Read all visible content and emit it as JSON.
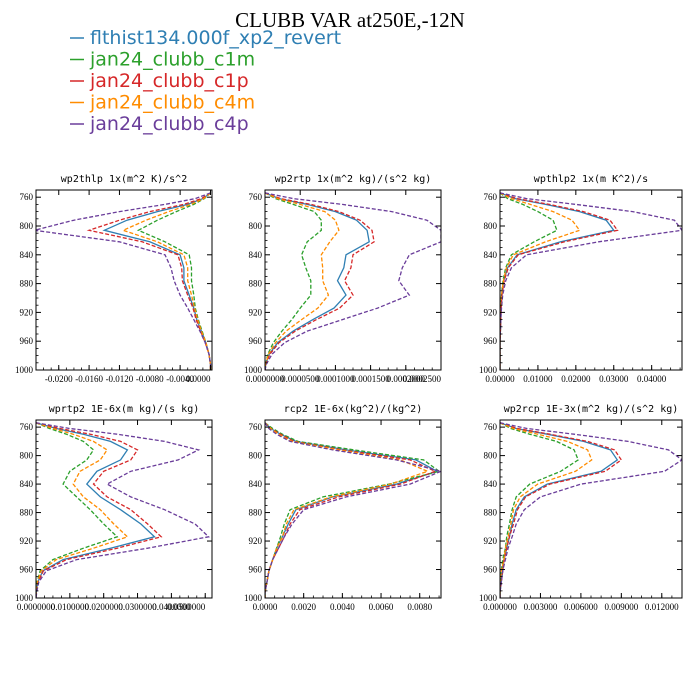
{
  "title": "CLUBB VAR at250E,-12N",
  "legend": [
    {
      "name": "flthist134.000f_xp2_revert",
      "color": "#2f7fb3",
      "dash": "solid"
    },
    {
      "name": "jan24_clubb_c1m",
      "color": "#2ca02c",
      "dash": "dashed"
    },
    {
      "name": "jan24_clubb_c1p",
      "color": "#d62728",
      "dash": "dashed"
    },
    {
      "name": "jan24_clubb_c4m",
      "color": "#ff8c00",
      "dash": "dashed"
    },
    {
      "name": "jan24_clubb_c4p",
      "color": "#6a3d9a",
      "dash": "dashed"
    }
  ],
  "chart_data": [
    {
      "type": "line",
      "title": "wp2thlp  1x(m^2 K)/s^2",
      "xlim": [
        -0.023,
        0.0002
      ],
      "ylim": [
        1000,
        750
      ],
      "xticks": [
        "-0.0200",
        "-0.0160",
        "-0.0120",
        "-0.0080",
        "-0.0040",
        "0.0000"
      ],
      "xtick_values": [
        -0.02,
        -0.016,
        -0.012,
        -0.008,
        -0.004,
        0.0
      ],
      "yticks": [
        760,
        800,
        840,
        880,
        920,
        960,
        1000
      ],
      "levels": [
        754,
        762,
        770,
        780,
        792,
        806,
        822,
        840,
        858,
        876,
        896,
        914,
        930,
        946,
        962,
        978,
        992,
        1000
      ],
      "series": [
        {
          "name": "flthist134.000f_xp2_revert",
          "x": [
            0.0,
            -0.001,
            -0.003,
            -0.007,
            -0.011,
            -0.014,
            -0.008,
            -0.004,
            -0.0035,
            -0.0035,
            -0.0028,
            -0.0022,
            -0.0018,
            -0.0012,
            -0.0006,
            -0.0002,
            0.0,
            0.0
          ]
        },
        {
          "name": "jan24_clubb_c1m",
          "x": [
            0.0,
            -0.0008,
            -0.0022,
            -0.0045,
            -0.007,
            -0.0095,
            -0.006,
            -0.0028,
            -0.0025,
            -0.0025,
            -0.0022,
            -0.002,
            -0.0016,
            -0.0011,
            -0.0006,
            -0.0002,
            0.0,
            0.0
          ]
        },
        {
          "name": "jan24_clubb_c1p",
          "x": [
            0.0,
            -0.0012,
            -0.0035,
            -0.008,
            -0.012,
            -0.016,
            -0.009,
            -0.0043,
            -0.0038,
            -0.0037,
            -0.003,
            -0.0023,
            -0.0019,
            -0.0013,
            -0.0007,
            -0.0002,
            0.0,
            0.0
          ]
        },
        {
          "name": "jan24_clubb_c4m",
          "x": [
            0.0,
            -0.0009,
            -0.0026,
            -0.0055,
            -0.0085,
            -0.0115,
            -0.007,
            -0.0035,
            -0.003,
            -0.003,
            -0.0025,
            -0.0021,
            -0.0017,
            -0.0012,
            -0.0006,
            -0.0002,
            0.0,
            0.0
          ]
        },
        {
          "name": "jan24_clubb_c4p",
          "x": [
            0.0,
            -0.002,
            -0.006,
            -0.012,
            -0.018,
            -0.0232,
            -0.012,
            -0.006,
            -0.0052,
            -0.0048,
            -0.004,
            -0.003,
            -0.0022,
            -0.0014,
            -0.0007,
            -0.0002,
            0.0,
            0.0
          ]
        }
      ]
    },
    {
      "type": "line",
      "title": "wp2rtp  1x(m^2 kg)/(s^2 kg)",
      "xlim": [
        0.0,
        0.00025
      ],
      "ylim": [
        1000,
        750
      ],
      "xticks": [
        "0.0000000",
        "0.0000500",
        "0.0001000",
        "0.0001500",
        "0.0002000",
        "0.0002500"
      ],
      "xtick_values": [
        0.0,
        5e-05,
        0.0001,
        0.00015,
        0.0002,
        0.00025
      ],
      "yticks": [
        760,
        800,
        840,
        880,
        920,
        960,
        1000
      ],
      "levels": [
        754,
        762,
        770,
        780,
        792,
        806,
        822,
        840,
        858,
        876,
        896,
        914,
        930,
        946,
        962,
        978,
        992,
        1000
      ],
      "series": [
        {
          "name": "flthist134.000f_xp2_revert",
          "x": [
            0.0,
            2e-05,
            6e-05,
            0.0001,
            0.00013,
            0.000145,
            0.000148,
            0.000115,
            0.000112,
            0.000103,
            0.000115,
            9.8e-05,
            6.8e-05,
            4e-05,
            1.8e-05,
            6e-06,
            1e-06,
            0.0
          ]
        },
        {
          "name": "jan24_clubb_c1m",
          "x": [
            0.0,
            1.5e-05,
            4e-05,
            7e-05,
            8e-05,
            8e-05,
            6e-05,
            5.2e-05,
            5.8e-05,
            6.5e-05,
            6.5e-05,
            5e-05,
            3.8e-05,
            2.4e-05,
            1.2e-05,
            4e-06,
            1e-06,
            0.0
          ]
        },
        {
          "name": "jan24_clubb_c1p",
          "x": [
            0.0,
            2.2e-05,
            6.5e-05,
            0.000105,
            0.000135,
            0.000152,
            0.000155,
            0.000125,
            0.000122,
            0.000113,
            0.000125,
            0.000106,
            7.3e-05,
            4.3e-05,
            2e-05,
            7e-06,
            1e-06,
            0.0
          ]
        },
        {
          "name": "jan24_clubb_c4m",
          "x": [
            0.0,
            1.8e-05,
            5e-05,
            8.5e-05,
            0.0001,
            0.000105,
            9.2e-05,
            8e-05,
            8.2e-05,
            8.2e-05,
            9e-05,
            7.5e-05,
            5.2e-05,
            3e-05,
            1.5e-05,
            5e-06,
            1e-06,
            0.0
          ]
        },
        {
          "name": "jan24_clubb_c4p",
          "x": [
            0.0,
            4e-05,
            0.00011,
            0.00018,
            0.00023,
            0.00025,
            0.00025,
            0.000205,
            0.000195,
            0.00019,
            0.000205,
            0.00016,
            0.00011,
            6e-05,
            2.8e-05,
            1e-05,
            2e-06,
            0.0
          ]
        }
      ]
    },
    {
      "type": "line",
      "title": "wpthlp2  1x(m K^2)/s",
      "xlim": [
        0.0,
        0.048
      ],
      "ylim": [
        1000,
        750
      ],
      "xticks": [
        "0.00000",
        "0.01000",
        "0.02000",
        "0.03000",
        "0.04000"
      ],
      "xtick_values": [
        0.0,
        0.01,
        0.02,
        0.03,
        0.04
      ],
      "yticks": [
        760,
        800,
        840,
        880,
        920,
        960,
        1000
      ],
      "levels": [
        754,
        762,
        770,
        780,
        792,
        806,
        822,
        840,
        858,
        876,
        896,
        914,
        930,
        946,
        962,
        978,
        992,
        1000
      ],
      "series": [
        {
          "name": "flthist134.000f_xp2_revert",
          "x": [
            0.0,
            0.004,
            0.012,
            0.021,
            0.028,
            0.03,
            0.016,
            0.0045,
            0.002,
            0.001,
            0.0005,
            0.0003,
            0.0002,
            0.0001,
            0.0,
            0.0,
            0.0,
            0.0
          ]
        },
        {
          "name": "jan24_clubb_c1m",
          "x": [
            0.0,
            0.002,
            0.006,
            0.01,
            0.014,
            0.015,
            0.009,
            0.003,
            0.0015,
            0.0008,
            0.0004,
            0.0002,
            0.0001,
            0.0001,
            0.0,
            0.0,
            0.0,
            0.0
          ]
        },
        {
          "name": "jan24_clubb_c1p",
          "x": [
            0.0,
            0.0045,
            0.013,
            0.022,
            0.029,
            0.031,
            0.017,
            0.0048,
            0.0022,
            0.0011,
            0.0005,
            0.0003,
            0.0002,
            0.0001,
            0.0,
            0.0,
            0.0,
            0.0
          ]
        },
        {
          "name": "jan24_clubb_c4m",
          "x": [
            0.0,
            0.003,
            0.008,
            0.014,
            0.019,
            0.021,
            0.012,
            0.0035,
            0.0017,
            0.0009,
            0.0004,
            0.0002,
            0.0001,
            0.0001,
            0.0,
            0.0,
            0.0,
            0.0
          ]
        },
        {
          "name": "jan24_clubb_c4p",
          "x": [
            0.0,
            0.007,
            0.02,
            0.035,
            0.046,
            0.048,
            0.026,
            0.007,
            0.003,
            0.0015,
            0.0007,
            0.0004,
            0.0002,
            0.0001,
            0.0,
            0.0,
            0.0,
            0.0
          ]
        }
      ]
    },
    {
      "type": "line",
      "title": "wprtp2  1E-6x(m kg)/(s kg)",
      "xlim": [
        0.0,
        0.052
      ],
      "ylim": [
        1000,
        750
      ],
      "xticks": [
        "0.0000000",
        "0.0100000",
        "0.0200000",
        "0.0300000",
        "0.0400000",
        "0.0500000"
      ],
      "xtick_values": [
        0.0,
        0.01,
        0.02,
        0.03,
        0.04,
        0.05
      ],
      "yticks": [
        760,
        800,
        840,
        880,
        920,
        960,
        1000
      ],
      "levels": [
        754,
        762,
        770,
        780,
        792,
        806,
        822,
        840,
        858,
        876,
        896,
        914,
        930,
        946,
        962,
        978,
        992,
        1000
      ],
      "series": [
        {
          "name": "flthist134.000f_xp2_revert",
          "x": [
            0.0,
            0.006,
            0.014,
            0.022,
            0.027,
            0.025,
            0.018,
            0.015,
            0.019,
            0.025,
            0.031,
            0.035,
            0.022,
            0.008,
            0.002,
            0.0005,
            0.0001,
            0.0
          ]
        },
        {
          "name": "jan24_clubb_c1m",
          "x": [
            0.0,
            0.004,
            0.009,
            0.014,
            0.017,
            0.015,
            0.01,
            0.008,
            0.012,
            0.016,
            0.02,
            0.024,
            0.014,
            0.005,
            0.0012,
            0.0003,
            0.0001,
            0.0
          ]
        },
        {
          "name": "jan24_clubb_c1p",
          "x": [
            0.0,
            0.007,
            0.016,
            0.025,
            0.03,
            0.028,
            0.02,
            0.017,
            0.021,
            0.028,
            0.033,
            0.037,
            0.024,
            0.009,
            0.0022,
            0.0006,
            0.0001,
            0.0
          ]
        },
        {
          "name": "jan24_clubb_c4m",
          "x": [
            0.0,
            0.005,
            0.011,
            0.017,
            0.021,
            0.019,
            0.013,
            0.011,
            0.014,
            0.019,
            0.023,
            0.027,
            0.017,
            0.006,
            0.0015,
            0.0004,
            0.0001,
            0.0
          ]
        },
        {
          "name": "jan24_clubb_c4p",
          "x": [
            0.0,
            0.01,
            0.024,
            0.038,
            0.048,
            0.042,
            0.028,
            0.021,
            0.028,
            0.038,
            0.047,
            0.051,
            0.033,
            0.012,
            0.003,
            0.0008,
            0.0002,
            0.0
          ]
        }
      ]
    },
    {
      "type": "line",
      "title": "rcp2  1E-6x(kg^2)/(kg^2)",
      "xlim": [
        0.0,
        0.0091
      ],
      "ylim": [
        1000,
        750
      ],
      "xticks": [
        "0.0000",
        "0.0020",
        "0.0040",
        "0.0060",
        "0.0080"
      ],
      "xtick_values": [
        0.0,
        0.002,
        0.004,
        0.006,
        0.008
      ],
      "yticks": [
        760,
        800,
        840,
        880,
        920,
        960,
        1000
      ],
      "levels": [
        754,
        762,
        770,
        780,
        792,
        806,
        822,
        840,
        858,
        876,
        896,
        914,
        930,
        946,
        962,
        978,
        992,
        1000
      ],
      "series": [
        {
          "name": "flthist134.000f_xp2_revert",
          "x": [
            0.0,
            0.0003,
            0.0008,
            0.0016,
            0.0042,
            0.0078,
            0.0089,
            0.0068,
            0.0035,
            0.0016,
            0.0012,
            0.0009,
            0.0006,
            0.0004,
            0.0002,
            0.0001,
            0.0,
            0.0
          ]
        },
        {
          "name": "jan24_clubb_c1m",
          "x": [
            0.0,
            0.0004,
            0.0009,
            0.0017,
            0.0046,
            0.0082,
            0.009,
            0.0064,
            0.003,
            0.0013,
            0.001,
            0.0008,
            0.0006,
            0.0004,
            0.0002,
            0.0001,
            0.0,
            0.0
          ]
        },
        {
          "name": "jan24_clubb_c1p",
          "x": [
            0.0,
            0.0003,
            0.0008,
            0.0015,
            0.004,
            0.0075,
            0.0088,
            0.007,
            0.0038,
            0.0018,
            0.0013,
            0.001,
            0.0007,
            0.0004,
            0.0002,
            0.0001,
            0.0,
            0.0
          ]
        },
        {
          "name": "jan24_clubb_c4m",
          "x": [
            0.0,
            0.0003,
            0.0007,
            0.0014,
            0.0038,
            0.007,
            0.0084,
            0.0065,
            0.0034,
            0.0015,
            0.0011,
            0.0009,
            0.0006,
            0.0004,
            0.0002,
            0.0001,
            0.0,
            0.0
          ]
        },
        {
          "name": "jan24_clubb_c4p",
          "x": [
            0.0,
            0.0002,
            0.0006,
            0.0013,
            0.0035,
            0.0068,
            0.0091,
            0.0075,
            0.0042,
            0.002,
            0.0014,
            0.001,
            0.0007,
            0.0004,
            0.0002,
            0.0001,
            0.0,
            0.0
          ]
        }
      ]
    },
    {
      "type": "line",
      "title": "wp2rcp  1E-3x(m^2 kg)/(s^2 kg)",
      "xlim": [
        0.0,
        0.0135
      ],
      "ylim": [
        1000,
        750
      ],
      "xticks": [
        "0.000000",
        "0.003000",
        "0.006000",
        "0.009000",
        "0.012000"
      ],
      "xtick_values": [
        0.0,
        0.003,
        0.006,
        0.009,
        0.012
      ],
      "yticks": [
        760,
        800,
        840,
        880,
        920,
        960,
        1000
      ],
      "levels": [
        754,
        762,
        770,
        780,
        792,
        806,
        822,
        840,
        858,
        876,
        896,
        914,
        930,
        946,
        962,
        978,
        992,
        1000
      ],
      "series": [
        {
          "name": "flthist134.000f_xp2_revert",
          "x": [
            0.0,
            0.0012,
            0.0035,
            0.0062,
            0.0082,
            0.0087,
            0.0075,
            0.0035,
            0.0018,
            0.0012,
            0.0009,
            0.0007,
            0.0005,
            0.0003,
            0.0002,
            0.0001,
            0.0,
            0.0
          ]
        },
        {
          "name": "jan24_clubb_c1m",
          "x": [
            0.0,
            0.0008,
            0.0022,
            0.0042,
            0.0055,
            0.0058,
            0.0045,
            0.0022,
            0.0012,
            0.0009,
            0.0007,
            0.0005,
            0.0004,
            0.0002,
            0.0001,
            0.0,
            0.0,
            0.0
          ]
        },
        {
          "name": "jan24_clubb_c1p",
          "x": [
            0.0,
            0.0013,
            0.0037,
            0.0065,
            0.0085,
            0.009,
            0.0078,
            0.0037,
            0.0019,
            0.0013,
            0.001,
            0.0007,
            0.0005,
            0.0003,
            0.0002,
            0.0001,
            0.0,
            0.0
          ]
        },
        {
          "name": "jan24_clubb_c4m",
          "x": [
            0.0,
            0.001,
            0.0028,
            0.005,
            0.0065,
            0.0068,
            0.0056,
            0.0028,
            0.0015,
            0.001,
            0.0008,
            0.0006,
            0.0004,
            0.0003,
            0.0001,
            0.0,
            0.0,
            0.0
          ]
        },
        {
          "name": "jan24_clubb_c4p",
          "x": [
            0.0,
            0.002,
            0.0055,
            0.0095,
            0.0125,
            0.0135,
            0.0122,
            0.006,
            0.003,
            0.0018,
            0.0012,
            0.0009,
            0.0006,
            0.0004,
            0.0002,
            0.0001,
            0.0,
            0.0
          ]
        }
      ]
    }
  ]
}
